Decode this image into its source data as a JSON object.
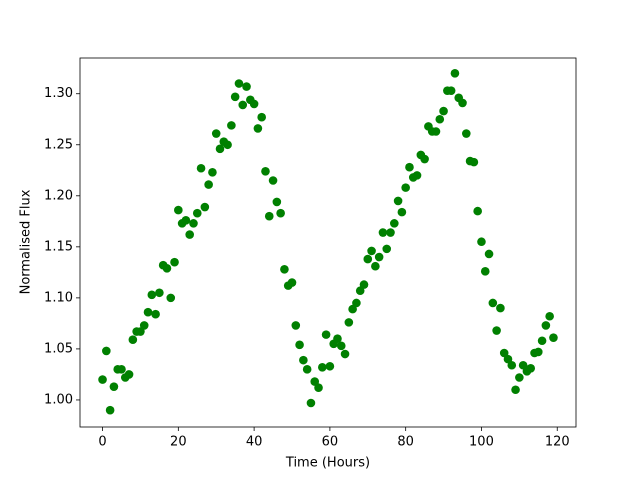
{
  "chart_data": {
    "type": "scatter",
    "xlabel": "Time (Hours)",
    "ylabel": "Normalised Flux",
    "x": [
      0,
      1,
      2,
      3,
      4,
      5,
      6,
      7,
      8,
      9,
      10,
      11,
      12,
      13,
      14,
      15,
      16,
      17,
      18,
      19,
      20,
      21,
      22,
      23,
      24,
      25,
      26,
      27,
      28,
      29,
      30,
      31,
      32,
      33,
      34,
      35,
      36,
      37,
      38,
      39,
      40,
      41,
      42,
      43,
      44,
      45,
      46,
      47,
      48,
      49,
      50,
      51,
      52,
      53,
      54,
      55,
      56,
      57,
      58,
      59,
      60,
      61,
      62,
      63,
      64,
      65,
      66,
      67,
      68,
      69,
      70,
      71,
      72,
      73,
      74,
      75,
      76,
      77,
      78,
      79,
      80,
      81,
      82,
      83,
      84,
      85,
      86,
      87,
      88,
      89,
      90,
      91,
      92,
      93,
      94,
      95,
      96,
      97,
      98,
      99,
      100,
      101,
      102,
      103,
      104,
      105,
      106,
      107,
      108,
      109,
      110,
      111,
      112,
      113,
      114,
      115,
      116,
      117,
      118,
      119
    ],
    "series": [
      {
        "color": "#008000",
        "values": [
          1.02,
          1.048,
          0.99,
          1.013,
          1.03,
          1.03,
          1.022,
          1.025,
          1.059,
          1.067,
          1.067,
          1.073,
          1.086,
          1.103,
          1.084,
          1.105,
          1.132,
          1.129,
          1.1,
          1.135,
          1.186,
          1.173,
          1.176,
          1.162,
          1.173,
          1.183,
          1.227,
          1.189,
          1.211,
          1.223,
          1.261,
          1.246,
          1.253,
          1.25,
          1.269,
          1.297,
          1.31,
          1.289,
          1.307,
          1.294,
          1.29,
          1.266,
          1.277,
          1.224,
          1.18,
          1.215,
          1.194,
          1.183,
          1.128,
          1.112,
          1.115,
          1.073,
          1.054,
          1.039,
          1.03,
          0.997,
          1.018,
          1.012,
          1.032,
          1.064,
          1.033,
          1.055,
          1.06,
          1.053,
          1.045,
          1.076,
          1.089,
          1.095,
          1.107,
          1.113,
          1.138,
          1.146,
          1.131,
          1.14,
          1.164,
          1.148,
          1.164,
          1.173,
          1.195,
          1.184,
          1.208,
          1.228,
          1.218,
          1.22,
          1.24,
          1.236,
          1.268,
          1.263,
          1.263,
          1.275,
          1.283,
          1.303,
          1.303,
          1.32,
          1.296,
          1.291,
          1.261,
          1.234,
          1.233,
          1.185,
          1.155,
          1.126,
          1.143,
          1.095,
          1.068,
          1.09,
          1.046,
          1.04,
          1.034,
          1.01,
          1.022,
          1.034,
          1.028,
          1.031,
          1.046,
          1.047,
          1.058,
          1.073,
          1.082,
          1.061
        ]
      }
    ],
    "xlim": [
      -5.95,
      124.95
    ],
    "ylim": [
      0.9735,
      1.335
    ],
    "xticks": [
      0,
      20,
      40,
      60,
      80,
      100,
      120
    ],
    "yticks": [
      {
        "value": 1,
        "label": "1.00"
      },
      1.05,
      {
        "value": 1.1,
        "label": "1.10"
      },
      1.15,
      {
        "value": 1.2,
        "label": "1.20"
      },
      1.25,
      {
        "value": 1.3,
        "label": "1.30"
      }
    ]
  }
}
